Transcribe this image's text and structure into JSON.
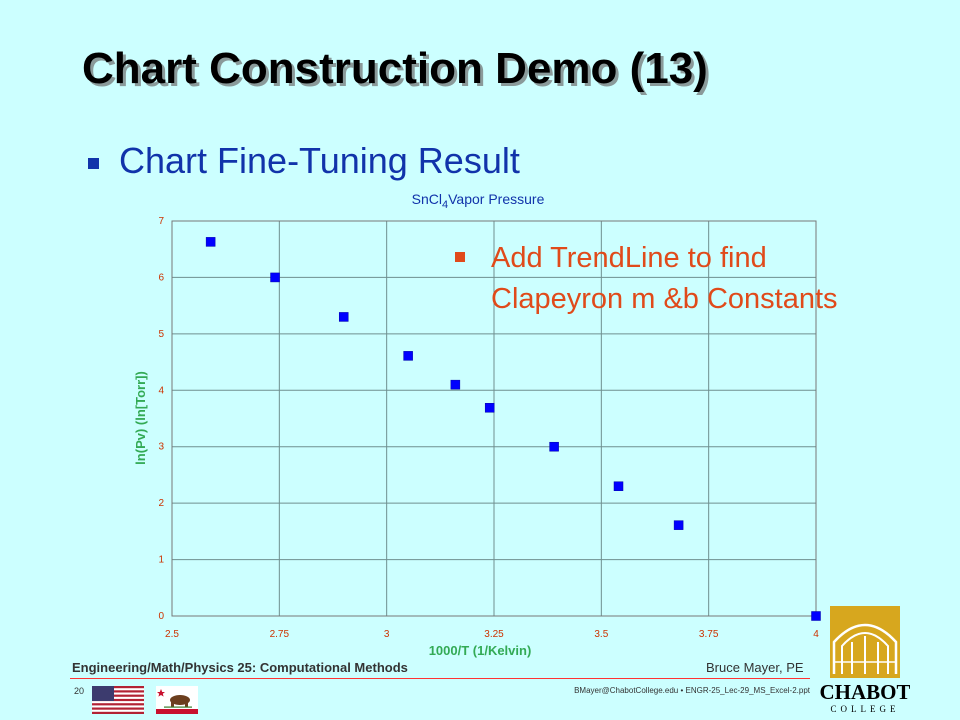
{
  "slide": {
    "title": "Chart Construction Demo (13)",
    "bullet": "Chart Fine-Tuning Result",
    "callout": "Add TrendLine to find Clapeyron  m &b Constants"
  },
  "footer": {
    "course": "Engineering/Math/Physics 25: Computational Methods",
    "author": "Bruce Mayer, PE",
    "page": "20",
    "file": "BMayer@ChabotCollege.edu  • ENGR-25_Lec-29_MS_Excel-2.ppt",
    "logo_name": "CHABOT",
    "logo_sub": "COLLEGE"
  },
  "chart_data": {
    "type": "scatter",
    "title": "SnCl4Vapor Pressure",
    "title_parts": {
      "pre": "SnCl",
      "sub": "4",
      "post": "Vapor Pressure"
    },
    "xlabel": "1000/T (1/Kelvin)",
    "ylabel": "ln(Pv) (ln[Torr])",
    "xlim": [
      2.5,
      4
    ],
    "ylim": [
      0,
      7
    ],
    "x_ticks": [
      "2.5",
      "2.75",
      "3",
      "3.25",
      "3.5",
      "3.75",
      "4"
    ],
    "y_ticks": [
      "0",
      "1",
      "2",
      "3",
      "4",
      "5",
      "6",
      "7"
    ],
    "x_tick_values": [
      2.5,
      2.75,
      3,
      3.25,
      3.5,
      3.75,
      4
    ],
    "y_tick_values": [
      0,
      1,
      2,
      3,
      4,
      5,
      6,
      7
    ],
    "grid": true,
    "marker_color": "#0000ff",
    "axis_label_color": "#33aa55",
    "tick_label_color": "#cc3300",
    "series": [
      {
        "x": [
          2.59,
          2.74,
          2.9,
          3.05,
          3.16,
          3.24,
          3.39,
          3.54,
          3.68,
          4.0
        ],
        "y": [
          6.63,
          6.0,
          5.3,
          4.61,
          4.1,
          3.69,
          3.0,
          2.3,
          1.61,
          0.0
        ]
      }
    ]
  }
}
